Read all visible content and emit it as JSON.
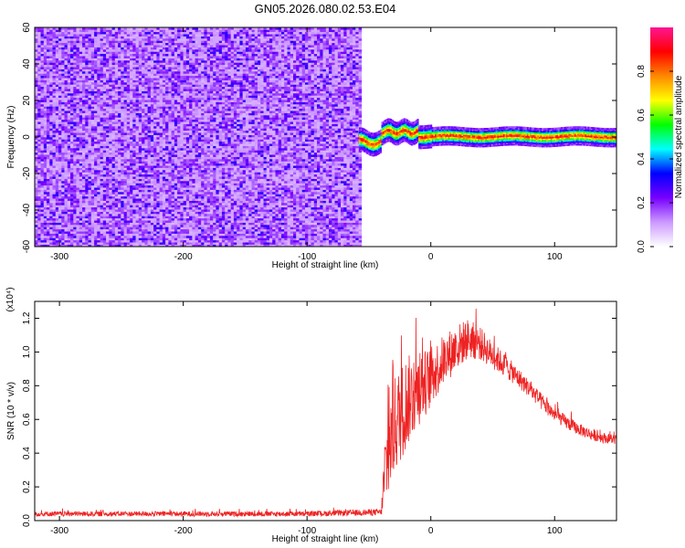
{
  "figure": {
    "title": "GN05.2026.080.02.53.E04"
  },
  "chart_data": [
    {
      "type": "heatmap",
      "title": "GN05.2026.080.02.53.E04",
      "xlabel": "Height of straight line (km)",
      "ylabel": "Frequency (Hz)",
      "xlim": [
        -320,
        150
      ],
      "ylim": [
        -60,
        60
      ],
      "xticks": [
        -300,
        -200,
        -100,
        0,
        100
      ],
      "yticks": [
        -60,
        -40,
        -20,
        0,
        20,
        40,
        60
      ],
      "colorbar": {
        "label": "Normalized spectral amplitude",
        "range": [
          0,
          1
        ],
        "ticks": [
          0.0,
          0.2,
          0.4,
          0.6,
          0.8
        ],
        "colormap": [
          "#ffffff",
          "#cc99ff",
          "#7700ff",
          "#0000ff",
          "#00ffff",
          "#00ff00",
          "#ffff00",
          "#ff8800",
          "#ff0000",
          "#ff1493"
        ],
        "placement": "right"
      },
      "regions": [
        {
          "name": "noise",
          "x_range": [
            -320,
            -58
          ],
          "y_range": [
            -60,
            60
          ],
          "amplitude_range": [
            0.05,
            0.3
          ]
        },
        {
          "name": "signal-line",
          "x_range": [
            -58,
            150
          ],
          "center_freq_hz": 0,
          "amplitude_peak": 1.0
        }
      ]
    },
    {
      "type": "line",
      "xlabel": "Height of straight line (km)",
      "ylabel": "SNR (10 * v/v)",
      "y_multiplier": "(x10⁴)",
      "xlim": [
        -320,
        150
      ],
      "ylim": [
        0,
        1.3
      ],
      "xticks": [
        -300,
        -200,
        -100,
        0,
        100
      ],
      "yticks": [
        0.0,
        0.2,
        0.4,
        0.6,
        0.8,
        1.0,
        1.2
      ],
      "series": [
        {
          "color": "#ee2222",
          "envelope": {
            "x": [
              -320,
              -100,
              -40,
              -37,
              -30,
              -20,
              -10,
              0,
              10,
              20,
              30,
              40,
              50,
              60,
              70,
              80,
              90,
              100,
              110,
              120,
              130,
              140,
              150
            ],
            "mean": [
              0.04,
              0.04,
              0.05,
              0.3,
              0.55,
              0.7,
              0.78,
              0.85,
              0.95,
              1.02,
              1.08,
              1.05,
              0.98,
              0.92,
              0.85,
              0.78,
              0.7,
              0.63,
              0.58,
              0.54,
              0.51,
              0.49,
              0.48
            ],
            "spread": [
              0.015,
              0.015,
              0.02,
              0.25,
              0.3,
              0.28,
              0.22,
              0.18,
              0.15,
              0.14,
              0.12,
              0.1,
              0.08,
              0.07,
              0.06,
              0.05,
              0.05,
              0.04,
              0.04,
              0.035,
              0.035,
              0.03,
              0.03
            ]
          }
        }
      ]
    }
  ]
}
